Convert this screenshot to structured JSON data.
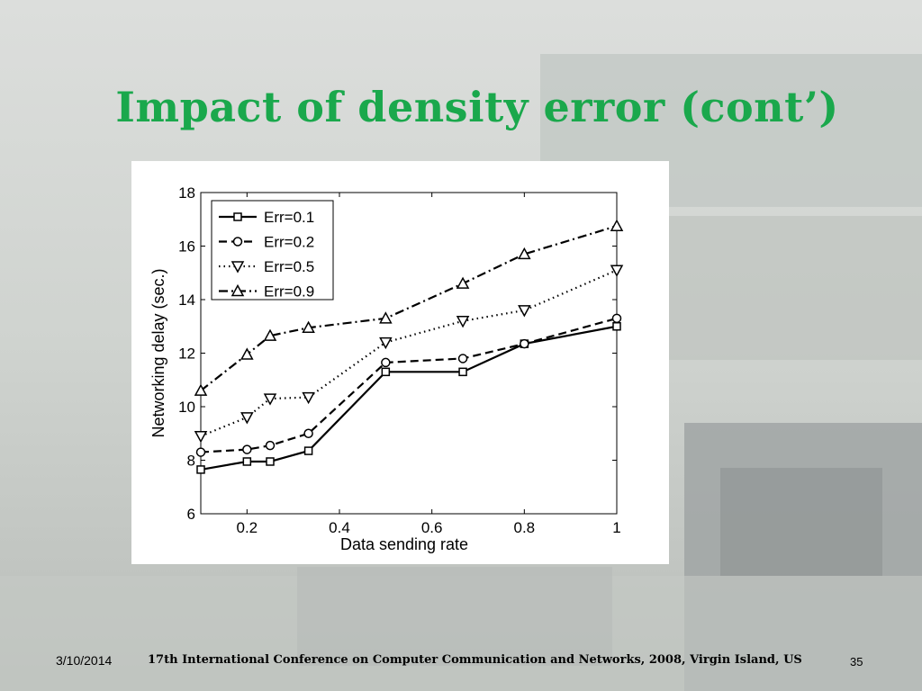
{
  "slide": {
    "title": "Impact of density error (cont’)",
    "footer_date": "3/10/2014",
    "footer_conference": "17th International Conference on Computer Communication and Networks, 2008, Virgin Island, US",
    "page_number": "35"
  },
  "chart_data": {
    "type": "line",
    "title": "",
    "xlabel": "Data sending rate",
    "ylabel": "Networking delay (sec.)",
    "xlim": [
      0.1,
      1.0
    ],
    "ylim": [
      6,
      18
    ],
    "xticks": [
      0.2,
      0.4,
      0.6,
      0.8,
      1
    ],
    "xtick_labels": [
      "0.2",
      "0.4",
      "0.6",
      "0.8",
      "1"
    ],
    "yticks": [
      6,
      8,
      10,
      12,
      14,
      16,
      18
    ],
    "ytick_labels": [
      "6",
      "8",
      "10",
      "12",
      "14",
      "16",
      "18"
    ],
    "grid": false,
    "legend_position": "top-left",
    "x": [
      0.1,
      0.2,
      0.25,
      0.333,
      0.5,
      0.667,
      0.8,
      1.0
    ],
    "series": [
      {
        "name": "Err=0.1",
        "marker": "square",
        "linestyle": "solid",
        "values": [
          7.65,
          7.95,
          7.95,
          8.35,
          11.3,
          11.3,
          12.35,
          13.0
        ]
      },
      {
        "name": "Err=0.2",
        "marker": "circle",
        "linestyle": "dashed",
        "values": [
          8.3,
          8.4,
          8.55,
          9.0,
          11.65,
          11.8,
          12.35,
          13.3
        ]
      },
      {
        "name": "Err=0.5",
        "marker": "triangle-down",
        "linestyle": "dotted",
        "values": [
          8.9,
          9.6,
          10.3,
          10.35,
          12.4,
          13.2,
          13.6,
          15.1
        ]
      },
      {
        "name": "Err=0.9",
        "marker": "triangle-up",
        "linestyle": "dashdot",
        "values": [
          10.6,
          11.95,
          12.65,
          12.95,
          13.3,
          14.6,
          15.7,
          16.75
        ]
      }
    ]
  }
}
